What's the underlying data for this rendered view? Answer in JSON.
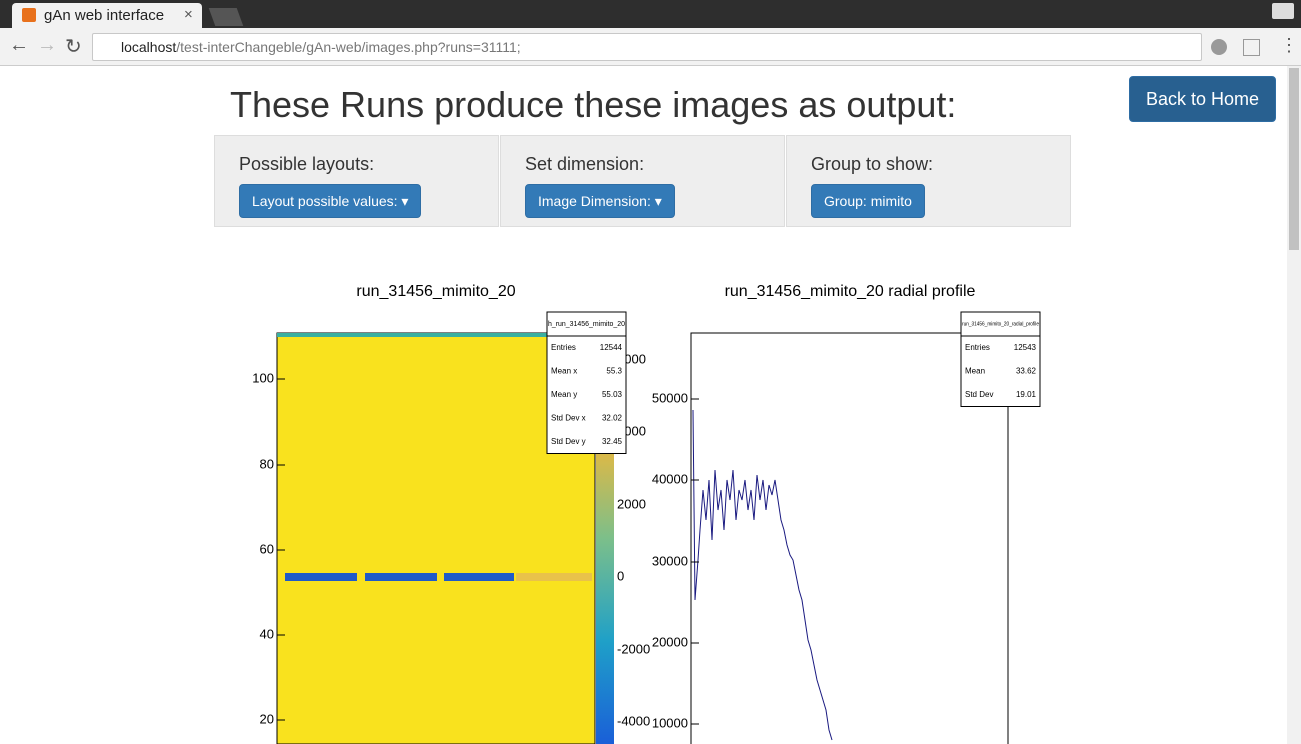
{
  "browser": {
    "tab_title": "gAn web interface",
    "url_host": "localhost",
    "url_path": "/test-interChangeble/gAn-web/images.php?runs=31111;"
  },
  "page": {
    "heading": "These Runs produce these images as output:",
    "back_button": "Back to Home",
    "panels": [
      {
        "label": "Possible layouts:",
        "button": "Layout possible values:"
      },
      {
        "label": "Set dimension:",
        "button": "Image Dimension:"
      },
      {
        "label": "Group to show:",
        "button": "Group: mimito"
      }
    ]
  },
  "images": [
    {
      "title": "run_31456_mimito_20",
      "stats_title": "h_run_31456_mimito_20",
      "stats": [
        [
          "Entries",
          "12544"
        ],
        [
          "Mean x",
          "55.3"
        ],
        [
          "Mean y",
          "55.03"
        ],
        [
          "Std Dev x",
          "32.02"
        ],
        [
          "Std Dev y",
          "32.45"
        ]
      ],
      "y_ticks": [
        "100",
        "80",
        "60",
        "40",
        "20"
      ],
      "z_ticks": [
        "6000",
        "4000",
        "2000",
        "0",
        "-2000",
        "-4000"
      ]
    },
    {
      "title": "run_31456_mimito_20 radial profile",
      "stats_title": "run_31456_mimito_20_radial_profile",
      "stats": [
        [
          "Entries",
          "12543"
        ],
        [
          "Mean",
          "33.62"
        ],
        [
          "Std Dev",
          "19.01"
        ]
      ],
      "y_ticks": [
        "50000",
        "40000",
        "30000",
        "20000",
        "10000"
      ]
    }
  ]
}
